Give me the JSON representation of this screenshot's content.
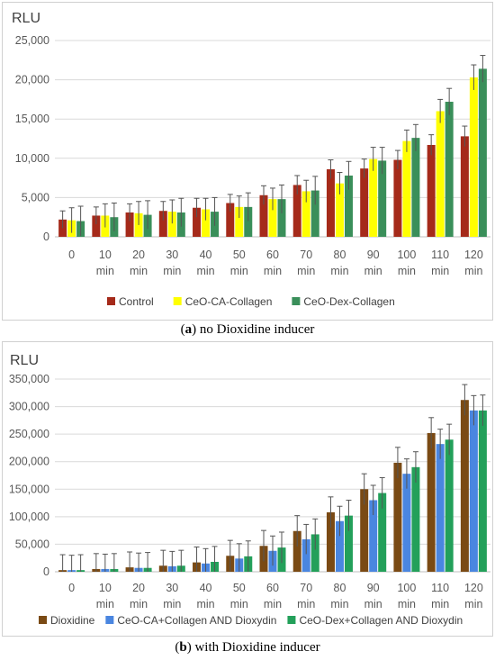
{
  "figure": {
    "caption_a_label": "a",
    "caption_a_text": "no Dioxidine inducer",
    "caption_b_label": "b",
    "caption_b_text": "with Dioxidine inducer"
  },
  "chart_data": [
    {
      "type": "bar",
      "ylabel": "RLU",
      "ylim": [
        0,
        25000
      ],
      "yticks": [
        "0",
        "5,000",
        "10,000",
        "15,000",
        "20,000",
        "25,000"
      ],
      "ytick_values": [
        0,
        5000,
        10000,
        15000,
        20000,
        25000
      ],
      "categories": [
        [
          "0",
          ""
        ],
        [
          "10",
          "min"
        ],
        [
          "20",
          "min"
        ],
        [
          "30",
          "min"
        ],
        [
          "40",
          "min"
        ],
        [
          "50",
          "min"
        ],
        [
          "60",
          "min"
        ],
        [
          "70",
          "min"
        ],
        [
          "80",
          "min"
        ],
        [
          "90",
          "min"
        ],
        [
          "100",
          "min"
        ],
        [
          "110",
          "min"
        ],
        [
          "120",
          "min"
        ]
      ],
      "grid": true,
      "legend_position": "bottom",
      "series": [
        {
          "name": "Control",
          "color": "#a52a1a",
          "values": [
            2200,
            2700,
            3100,
            3300,
            3700,
            4300,
            5300,
            6600,
            8600,
            8700,
            9800,
            11700,
            12800
          ],
          "errors": [
            1100,
            1100,
            1100,
            1200,
            1200,
            1100,
            1200,
            1200,
            1200,
            1200,
            1200,
            1300,
            1300
          ]
        },
        {
          "name": "CeO-CA-Collagen",
          "color": "#ffff00",
          "values": [
            2100,
            2700,
            3000,
            3200,
            3500,
            3800,
            4800,
            5800,
            6800,
            9900,
            12200,
            16000,
            20300
          ],
          "errors": [
            1600,
            1500,
            1500,
            1500,
            1400,
            1400,
            1400,
            1400,
            1400,
            1500,
            1400,
            1500,
            1600
          ]
        },
        {
          "name": "CeO-Dex-Collagen",
          "color": "#3a8f5a",
          "values": [
            2000,
            2500,
            2800,
            3100,
            3200,
            3800,
            4800,
            5900,
            7800,
            9700,
            12600,
            17200,
            21400
          ],
          "errors": [
            1900,
            1800,
            1800,
            1800,
            1800,
            1800,
            1800,
            1800,
            1800,
            1700,
            1700,
            1700,
            1700
          ]
        }
      ]
    },
    {
      "type": "bar",
      "ylabel": "RLU",
      "ylim": [
        0,
        350000
      ],
      "yticks": [
        "0",
        "50,000",
        "100,000",
        "150,000",
        "200,000",
        "250,000",
        "300,000",
        "350,000"
      ],
      "ytick_values": [
        0,
        50000,
        100000,
        150000,
        200000,
        250000,
        300000,
        350000
      ],
      "categories": [
        [
          "0",
          ""
        ],
        [
          "10",
          "min"
        ],
        [
          "20",
          "min"
        ],
        [
          "30",
          "min"
        ],
        [
          "40",
          "min"
        ],
        [
          "50",
          "min"
        ],
        [
          "60",
          "min"
        ],
        [
          "70",
          "min"
        ],
        [
          "80",
          "min"
        ],
        [
          "90",
          "min"
        ],
        [
          "100",
          "min"
        ],
        [
          "110",
          "min"
        ],
        [
          "120",
          "min"
        ]
      ],
      "grid": true,
      "legend_position": "bottom",
      "series": [
        {
          "name": "Dioxidine",
          "color": "#7a4a14",
          "values": [
            3000,
            5000,
            8000,
            11000,
            17000,
            29000,
            47000,
            74000,
            108000,
            150000,
            198000,
            252000,
            312000
          ],
          "errors": [
            28000,
            28000,
            28000,
            28000,
            28000,
            28000,
            28000,
            28000,
            28000,
            28000,
            28000,
            28000,
            28000
          ]
        },
        {
          "name": "CeO-CA+Collagen AND Dioxydin",
          "color": "#4a86e0",
          "values": [
            3000,
            5000,
            7000,
            10000,
            15000,
            24000,
            38000,
            59000,
            92000,
            130000,
            178000,
            232000,
            293000
          ],
          "errors": [
            27000,
            27000,
            27000,
            27000,
            27000,
            27000,
            27000,
            27000,
            27000,
            27000,
            27000,
            27000,
            27000
          ]
        },
        {
          "name": "CeO-Dex+Collagen AND Dioxydin",
          "color": "#23a05a",
          "values": [
            3000,
            5000,
            7000,
            11000,
            18000,
            28000,
            44000,
            68000,
            102000,
            143000,
            190000,
            240000,
            293000
          ],
          "errors": [
            28000,
            28000,
            28000,
            28000,
            28000,
            28000,
            28000,
            28000,
            28000,
            28000,
            28000,
            28000,
            28000
          ]
        }
      ]
    }
  ]
}
